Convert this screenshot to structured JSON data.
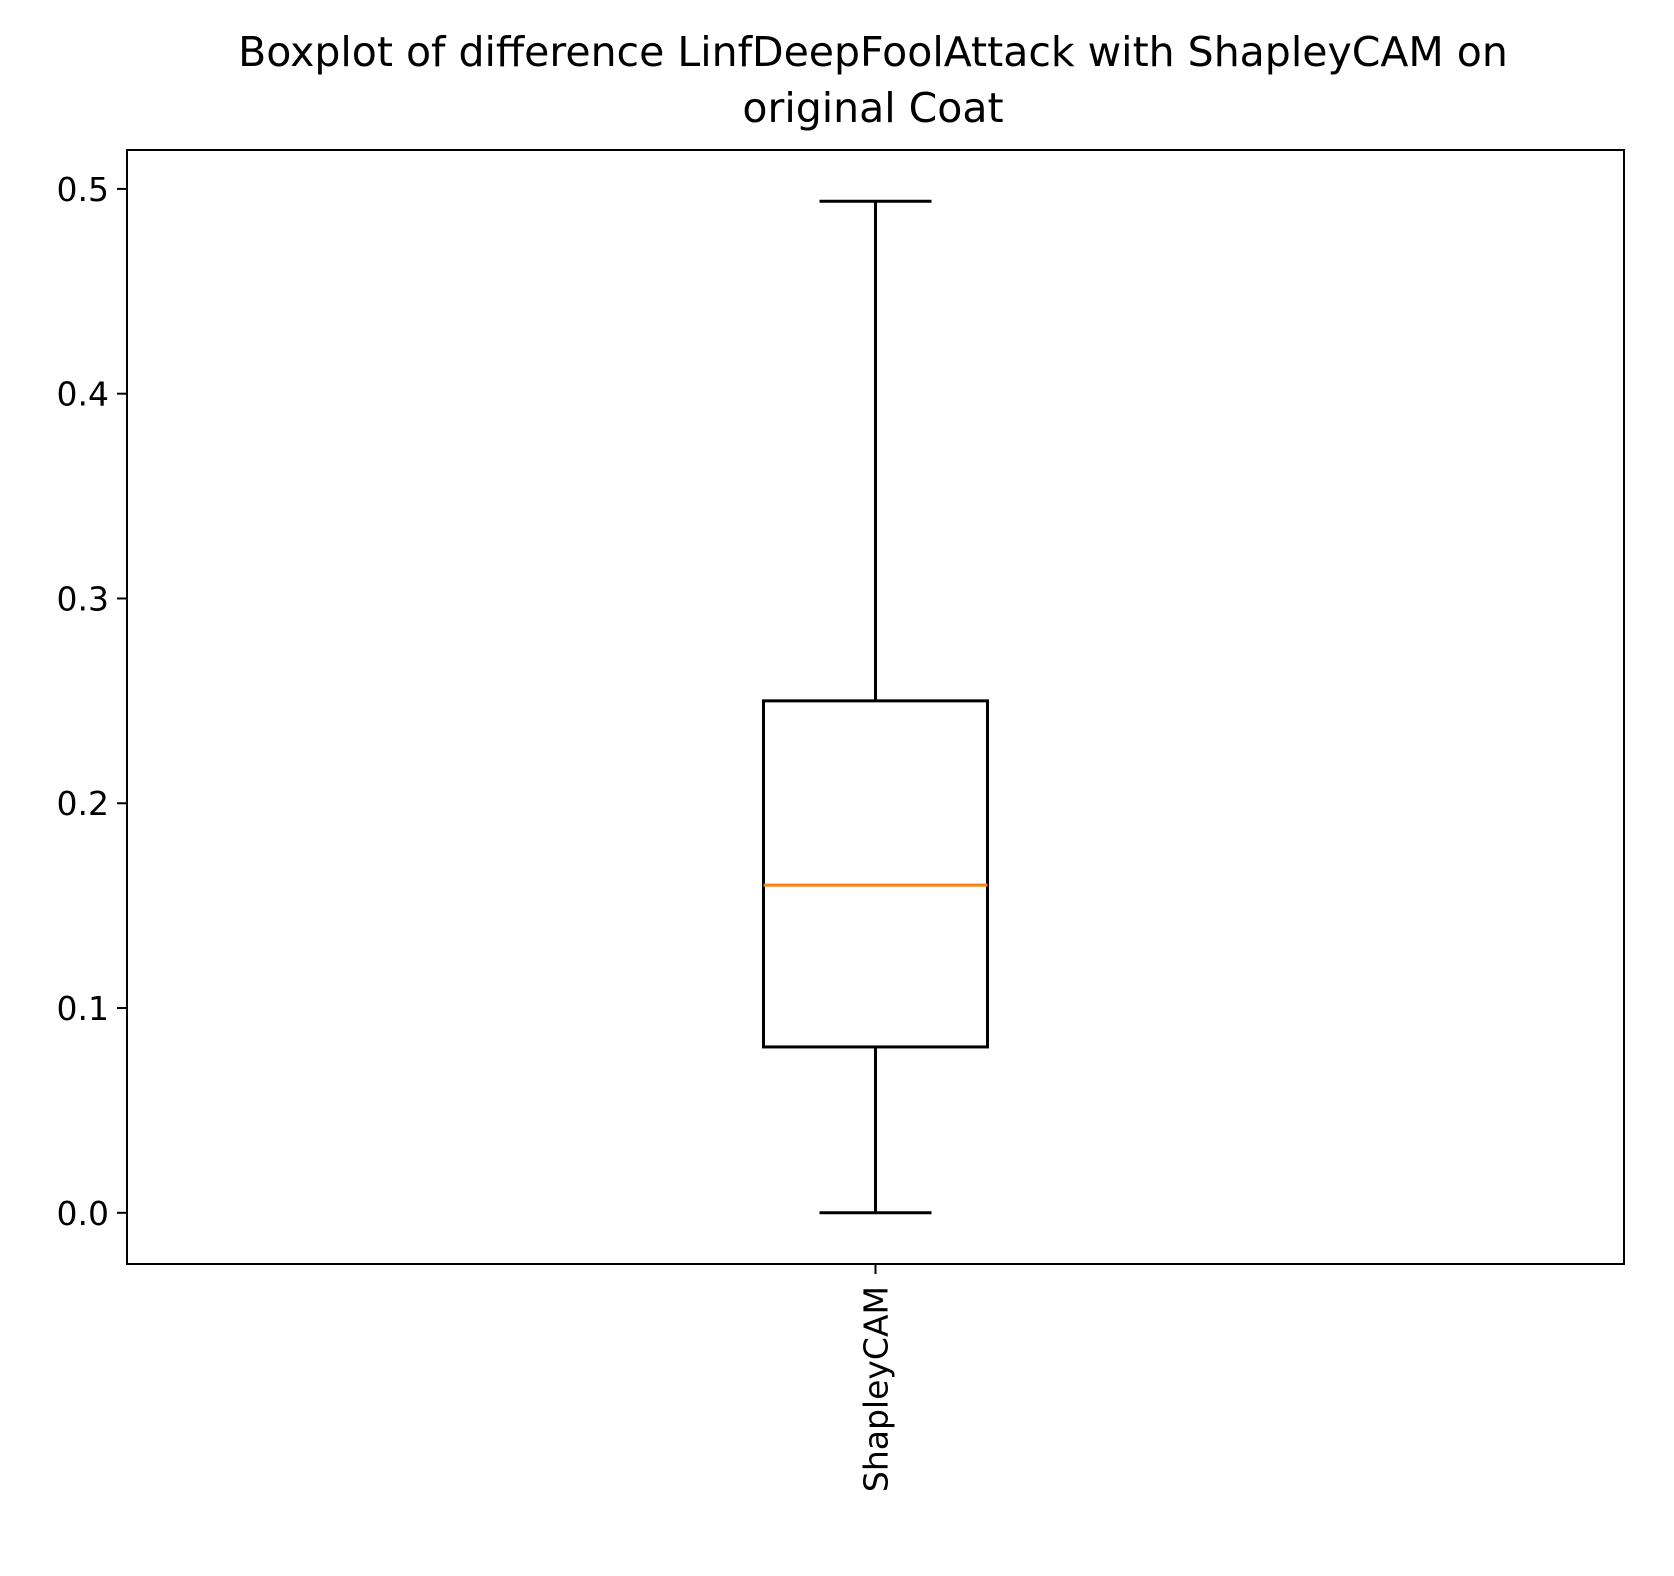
{
  "chart_data": {
    "type": "box",
    "title_lines": [
      "Boxplot of difference LinfDeepFoolAttack with ShapleyCAM on",
      "original Coat"
    ],
    "xlabel": "",
    "ylabel": "",
    "categories": [
      "ShapleyCAM"
    ],
    "boxes": [
      {
        "label": "ShapleyCAM",
        "whisker_low": 0.0,
        "q1": 0.081,
        "median": 0.16,
        "q3": 0.25,
        "whisker_high": 0.494
      }
    ],
    "ylim": [
      -0.025,
      0.519
    ],
    "yticks": [
      0.0,
      0.1,
      0.2,
      0.3,
      0.4,
      0.5
    ],
    "ytick_labels": [
      "0.0",
      "0.1",
      "0.2",
      "0.3",
      "0.4",
      "0.5"
    ],
    "xtick_rotation": "vertical",
    "grid": false,
    "colors": {
      "box": "#000000",
      "median": "#ff7f0e",
      "axes": "#000000",
      "background": "#ffffff"
    }
  }
}
